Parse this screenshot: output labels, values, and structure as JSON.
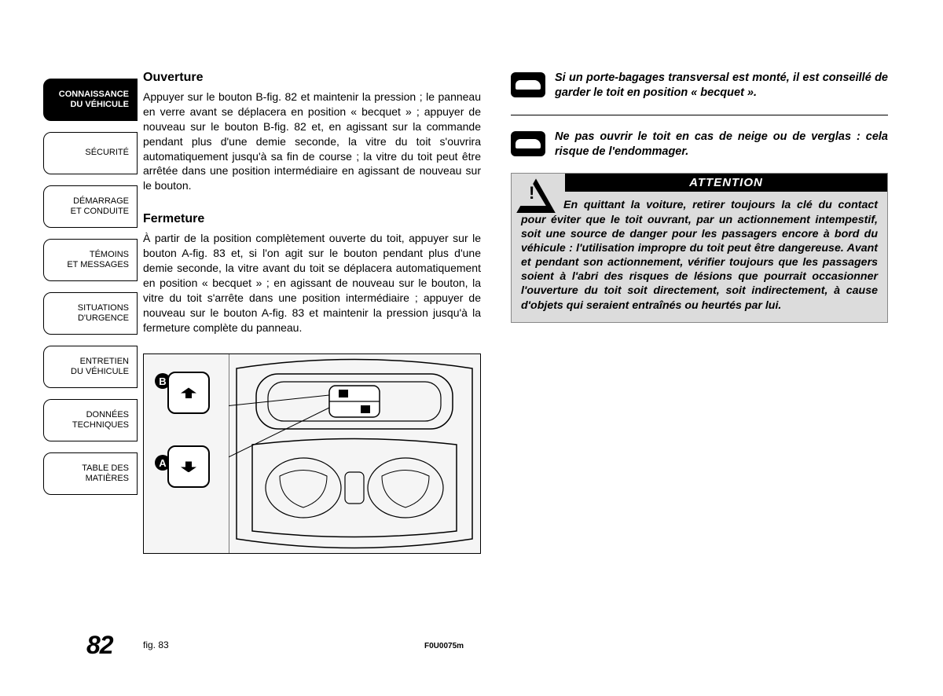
{
  "sidebar": {
    "tabs": [
      {
        "label": "CONNAISSANCE\nDU VÉHICULE",
        "active": true
      },
      {
        "label": "SÉCURITÉ",
        "active": false
      },
      {
        "label": "DÉMARRAGE\nET CONDUITE",
        "active": false
      },
      {
        "label": "TÉMOINS\nET MESSAGES",
        "active": false
      },
      {
        "label": "SITUATIONS\nD'URGENCE",
        "active": false
      },
      {
        "label": "ENTRETIEN\nDU VÉHICULE",
        "active": false
      },
      {
        "label": "DONNÉES\nTECHNIQUES",
        "active": false
      },
      {
        "label": "TABLE DES MATIÈRES",
        "active": false
      }
    ]
  },
  "sections": {
    "opening": {
      "title": "Ouverture",
      "body": "Appuyer sur le bouton B-fig. 82 et maintenir la pression ; le panneau en verre avant se déplacera en position « becquet » ; appuyer de nouveau sur le bouton B-fig. 82 et, en agissant sur la commande pendant plus d'une demie seconde, la vitre du toit s'ouvrira automatiquement jusqu'à sa fin de course ; la vitre du toit peut être arrêtée dans une position intermédiaire en agissant de nouveau sur le bouton."
    },
    "closing": {
      "title": "Fermeture",
      "body": "À partir de la position complètement ouverte du toit, appuyer sur le bouton A-fig. 83 et, si l'on agit sur le bouton pendant plus d'une demie seconde, la vitre avant du toit se déplacera automatiquement en position « becquet » ; en agissant de nouveau sur le bouton, la vitre du toit s'arrête dans une position intermédiaire ; appuyer de nouveau sur le bouton A-fig. 83 et maintenir la pression jusqu'à la fermeture complète du panneau."
    }
  },
  "notes": {
    "note1": "Si un porte-bagages transversal est monté, il est conseillé de garder le toit en position « becquet ».",
    "note2": "Ne pas ouvrir le toit en cas de neige ou de verglas : cela risque de l'endommager."
  },
  "attention": {
    "header": "ATTENTION",
    "body": "En quittant la voiture, retirer toujours la clé du contact pour éviter que le toit ouvrant, par un actionnement intempestif, soit une source de danger pour les passagers encore à bord du véhicule : l'utilisation impropre du toit peut être dangereuse. Avant et pendant son actionnement, vérifier toujours que les passagers soient à l'abri des risques de lésions que pourrait occasionner l'ouverture du toit soit directement, soit indirectement, à cause d'objets qui seraient entraînés ou heurtés par lui."
  },
  "figure": {
    "caption": "fig. 83",
    "code": "F0U0075m",
    "labels": {
      "a": "A",
      "b": "B"
    }
  },
  "pageNumber": "82",
  "colors": {
    "tab_active_bg": "#000000",
    "tab_active_fg": "#ffffff",
    "attention_bg": "#dcdcdc",
    "page_bg": "#ffffff"
  }
}
